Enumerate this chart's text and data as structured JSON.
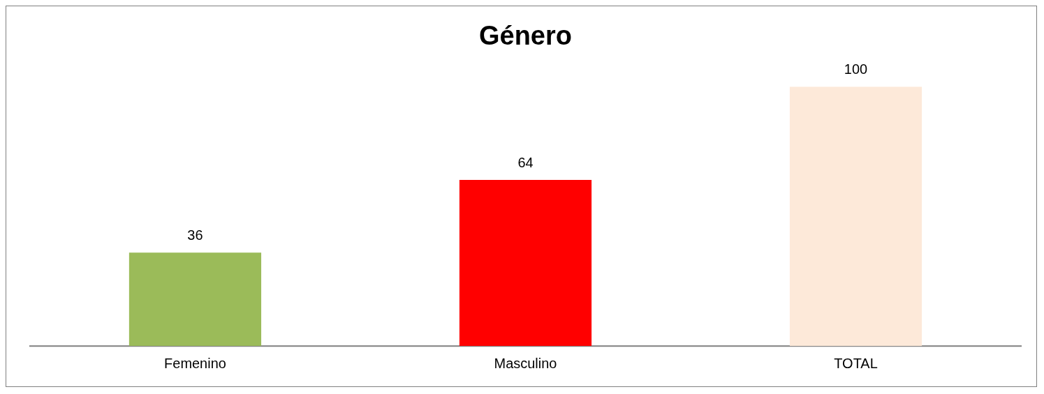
{
  "chart_data": {
    "type": "bar",
    "title": "Género",
    "categories": [
      "Femenino",
      "Masculino",
      "TOTAL"
    ],
    "values": [
      36,
      64,
      100
    ],
    "colors": [
      "#9bbb59",
      "#ff0000",
      "#fde9d9"
    ],
    "data_labels": true
  }
}
